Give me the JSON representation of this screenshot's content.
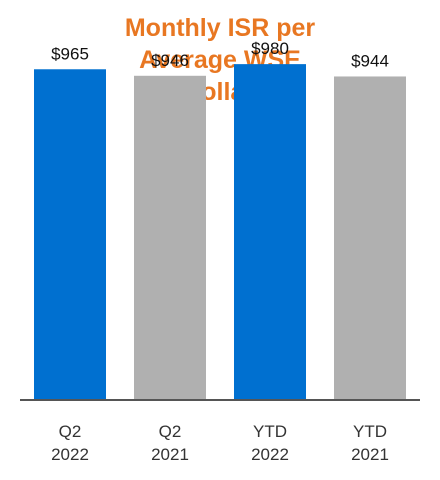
{
  "chart_data": {
    "type": "bar",
    "title": [
      "Monthly ISR per",
      "Average WSE",
      "($dollars)"
    ],
    "categories": [
      [
        "Q2",
        "2022"
      ],
      [
        "Q2",
        "2021"
      ],
      [
        "YTD",
        "2022"
      ],
      [
        "YTD",
        "2021"
      ]
    ],
    "values": [
      965,
      946,
      980,
      944
    ],
    "value_labels": [
      "$965",
      "$946",
      "$980",
      "$944"
    ],
    "ylim": [
      0,
      1100
    ],
    "grid": false,
    "legend": "none"
  },
  "colors": {
    "title": "#E87722",
    "bars": [
      "#0070D0",
      "#B0B0B0",
      "#0070D0",
      "#B0B0B0"
    ],
    "axis": "#555555"
  }
}
